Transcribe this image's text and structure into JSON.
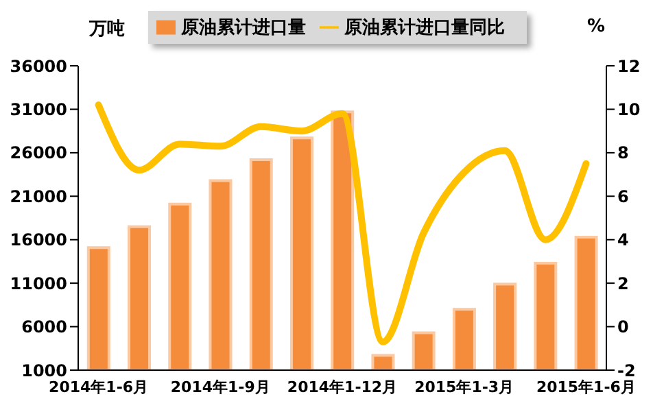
{
  "chart_data": {
    "type": "bar",
    "ylabel": "万吨",
    "y2label": "%",
    "categories": [
      "2014年1-6月",
      null,
      null,
      "2014年1-9月",
      null,
      null,
      "2014年1-12月",
      null,
      null,
      "2015年1-3月",
      null,
      null,
      "2015年1-6月"
    ],
    "series": [
      {
        "name": "原油累计进口量",
        "color": "#f58c3c",
        "values": [
          15100,
          17500,
          20100,
          22800,
          25200,
          27700,
          30700,
          2700,
          5300,
          8000,
          10900,
          13300,
          16300
        ]
      },
      {
        "name": "原油累计进口量同比",
        "type": "line",
        "axis": "y2",
        "color": "#ffc000",
        "values": [
          10.2,
          7.2,
          8.4,
          8.3,
          9.2,
          9.0,
          9.8,
          -0.7,
          4.3,
          7.1,
          8.1,
          4.0,
          7.5
        ]
      }
    ],
    "ylim": [
      1000,
      36000
    ],
    "yticks": [
      1000,
      6000,
      11000,
      16000,
      21000,
      26000,
      31000,
      36000
    ],
    "y2lim": [
      -2,
      12
    ],
    "y2ticks": [
      -2,
      0,
      2,
      4,
      6,
      8,
      10,
      12
    ],
    "grid": false,
    "legend": "top",
    "marker": "none"
  }
}
